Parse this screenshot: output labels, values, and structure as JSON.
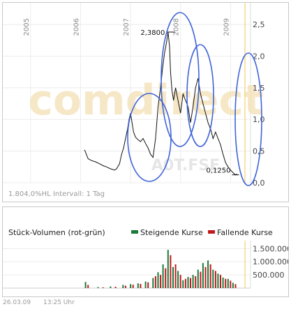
{
  "chart_data": [
    {
      "type": "line",
      "x_tick_labels": [
        "2005",
        "2006",
        "2007",
        "2008",
        "2009"
      ],
      "x_range": [
        2004.5,
        2009.4
      ],
      "ylim": [
        0,
        2.6
      ],
      "y_ticks": [
        0,
        0.5,
        1.0,
        1.5,
        2.0,
        2.5
      ],
      "y_tick_labels": [
        "0,0",
        "0,5",
        "1,0",
        "1,5",
        "2,0",
        "2,5"
      ],
      "grid": true,
      "annotations": [
        {
          "label": "2,3800",
          "x": 2007.8,
          "y": 2.38
        },
        {
          "label": "0,1250",
          "x": 2009.1,
          "y": 0.125
        }
      ],
      "watermark": "comdirect",
      "watermark_sub": "A0T.FSE",
      "footer": "1.804,0%HL Intervall: 1 Tag",
      "series": [
        {
          "x": [
            2006.08,
            2006.15,
            2006.22,
            2006.3,
            2006.38,
            2006.45,
            2006.52,
            2006.6,
            2006.68,
            2006.72,
            2006.78,
            2006.82,
            2006.86,
            2006.9,
            2006.94,
            2006.97,
            2007.0,
            2007.03,
            2007.06,
            2007.1,
            2007.15,
            2007.2,
            2007.25,
            2007.3,
            2007.35,
            2007.4,
            2007.45,
            2007.5,
            2007.55,
            2007.6,
            2007.64,
            2007.68,
            2007.72,
            2007.75,
            2007.78,
            2007.8,
            2007.83,
            2007.86,
            2007.9,
            2007.95,
            2008.0,
            2008.05,
            2008.1,
            2008.15,
            2008.2,
            2008.25,
            2008.3,
            2008.35,
            2008.4,
            2008.45,
            2008.5,
            2008.55,
            2008.6,
            2008.65,
            2008.7,
            2008.75,
            2008.8,
            2008.85,
            2008.9,
            2008.95,
            2009.0,
            2009.05,
            2009.1,
            2009.13
          ],
          "y": [
            0.52,
            0.38,
            0.35,
            0.33,
            0.3,
            0.27,
            0.25,
            0.22,
            0.2,
            0.22,
            0.3,
            0.45,
            0.55,
            0.7,
            0.85,
            1.0,
            1.1,
            0.95,
            0.8,
            0.72,
            0.68,
            0.65,
            0.7,
            0.62,
            0.55,
            0.45,
            0.4,
            0.7,
            1.2,
            1.5,
            1.8,
            2.05,
            2.22,
            2.38,
            2.15,
            1.75,
            1.45,
            1.3,
            1.5,
            1.3,
            1.1,
            1.4,
            1.3,
            1.2,
            0.95,
            1.2,
            1.5,
            1.65,
            1.4,
            1.25,
            1.1,
            0.95,
            0.85,
            0.7,
            0.8,
            0.7,
            0.6,
            0.45,
            0.32,
            0.25,
            0.2,
            0.16,
            0.125,
            0.14
          ]
        }
      ]
    },
    {
      "type": "bar",
      "title": "Stück-Volumen (rot-grün)",
      "legend": [
        "Steigende Kurse",
        "Fallende Kurse"
      ],
      "legend_position": "top-right",
      "legend_colors": [
        "#1a7a3a",
        "#c0191c"
      ],
      "x_range": [
        2004.5,
        2009.4
      ],
      "ylim": [
        0,
        1800000
      ],
      "y_ticks": [
        500000,
        1000000,
        1500000
      ],
      "y_tick_labels": [
        "500.000",
        "1.000.000",
        "1.500.000"
      ],
      "series": [
        {
          "name": "Steigende Kurse",
          "x": [
            2006.1,
            2006.35,
            2006.6,
            2006.85,
            2007.0,
            2007.15,
            2007.3,
            2007.45,
            2007.55,
            2007.65,
            2007.75,
            2007.85,
            2007.95,
            2008.05,
            2008.15,
            2008.25,
            2008.35,
            2008.45,
            2008.55,
            2008.65,
            2008.75,
            2008.85,
            2008.95,
            2009.05
          ],
          "values": [
            230000,
            40000,
            60000,
            120000,
            150000,
            180000,
            250000,
            380000,
            600000,
            900000,
            1450000,
            800000,
            650000,
            300000,
            420000,
            500000,
            700000,
            950000,
            1050000,
            700000,
            550000,
            400000,
            350000,
            200000
          ]
        },
        {
          "name": "Fallende Kurse",
          "x": [
            2006.15,
            2006.45,
            2006.7,
            2006.9,
            2007.05,
            2007.2,
            2007.35,
            2007.5,
            2007.6,
            2007.7,
            2007.8,
            2007.9,
            2008.0,
            2008.1,
            2008.2,
            2008.3,
            2008.4,
            2008.5,
            2008.6,
            2008.7,
            2008.8,
            2008.9,
            2009.0,
            2009.1
          ],
          "values": [
            120000,
            30000,
            50000,
            90000,
            130000,
            160000,
            220000,
            450000,
            500000,
            750000,
            1250000,
            900000,
            500000,
            350000,
            380000,
            450000,
            620000,
            800000,
            900000,
            650000,
            500000,
            350000,
            280000,
            150000
          ]
        }
      ]
    }
  ],
  "footer": {
    "date": "26.03.09",
    "time": "13:25 Uhr"
  }
}
